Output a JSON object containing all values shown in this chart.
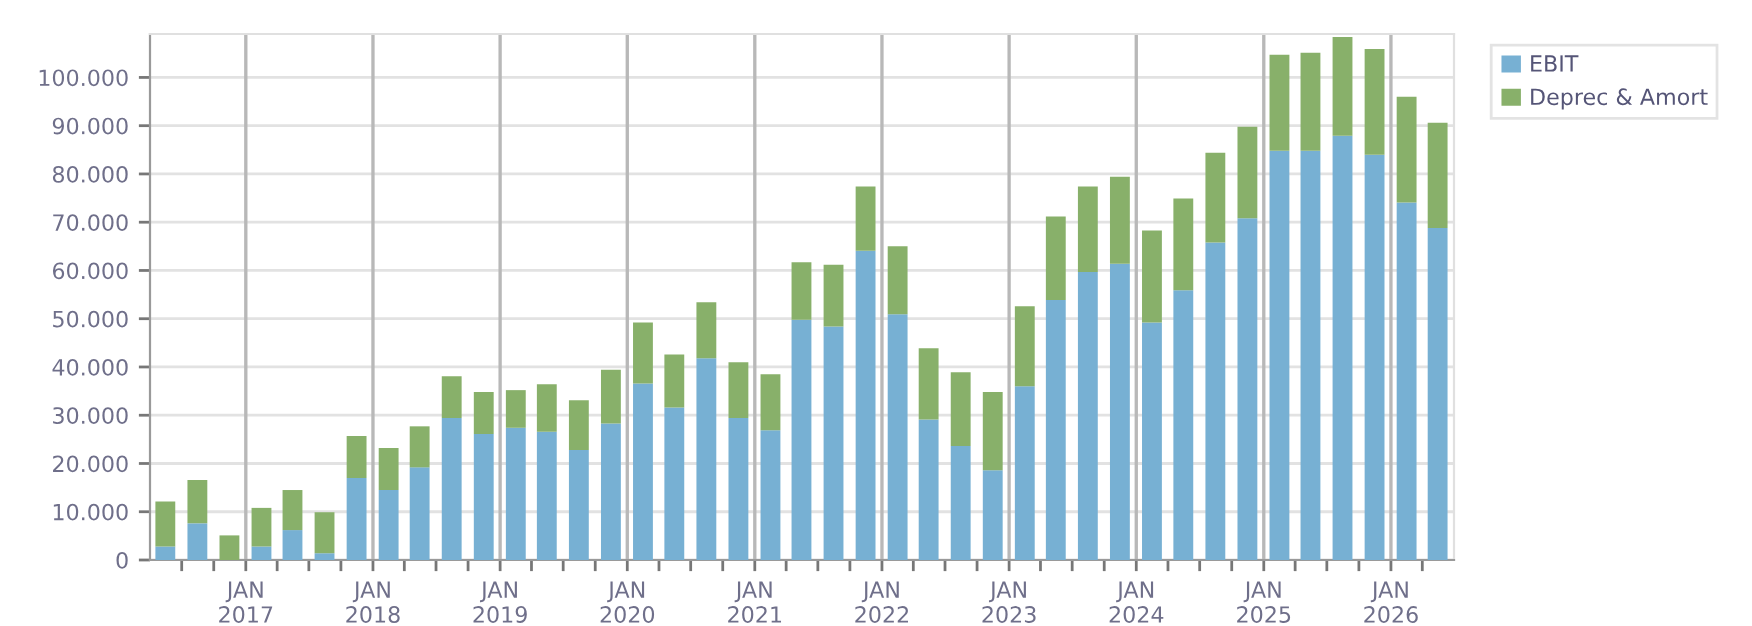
{
  "chart_data": {
    "type": "bar",
    "stacked": true,
    "x": [
      "2016-05-15",
      "2016-08-15",
      "2016-11-15",
      "2017-02-15",
      "2017-05-15",
      "2017-08-15",
      "2017-11-15",
      "2018-02-15",
      "2018-05-15",
      "2018-08-15",
      "2018-11-15",
      "2019-02-15",
      "2019-05-15",
      "2019-08-15",
      "2019-11-15",
      "2020-02-15",
      "2020-05-15",
      "2020-08-15",
      "2020-11-15",
      "2021-02-15",
      "2021-05-15",
      "2021-08-15",
      "2021-11-15",
      "2022-02-15",
      "2022-05-15",
      "2022-08-15",
      "2022-11-15",
      "2023-02-15",
      "2023-05-15",
      "2023-08-15",
      "2023-11-15",
      "2024-02-15",
      "2024-05-15",
      "2024-08-15",
      "2024-11-15",
      "2025-02-15",
      "2025-05-15",
      "2025-08-15",
      "2025-11-15",
      "2026-02-15",
      "2026-05-15"
    ],
    "series": [
      {
        "name": "EBIT",
        "color": "#77b0d3",
        "values": [
          2800,
          7600,
          0,
          2800,
          6200,
          1400,
          17000,
          14500,
          19200,
          29400,
          26100,
          27400,
          26600,
          22800,
          28300,
          36600,
          31600,
          41800,
          29400,
          26900,
          49800,
          48400,
          64100,
          50900,
          29100,
          23600,
          18600,
          36000,
          53900,
          59700,
          61400,
          49200,
          55900,
          65800,
          70800,
          84800,
          84800,
          87900,
          84000,
          74100,
          68800
        ]
      },
      {
        "name": "Deprec & Amort",
        "color": "#88b06a",
        "values": [
          9300,
          9000,
          5100,
          8000,
          8300,
          8500,
          8700,
          8700,
          8500,
          8700,
          8700,
          7800,
          9800,
          10300,
          11100,
          12600,
          11000,
          11600,
          11600,
          11600,
          11900,
          12800,
          13300,
          14100,
          14800,
          15300,
          16200,
          16600,
          17300,
          17700,
          18000,
          19100,
          19000,
          18600,
          19000,
          19900,
          20300,
          20500,
          21900,
          21900,
          21800
        ]
      }
    ],
    "xlim": [
      "2016-04",
      "2026-07"
    ],
    "xticks": [
      {
        "value": "2016-07",
        "label": null
      },
      {
        "value": "2016-10",
        "label": null
      },
      {
        "value": "2017-01",
        "label": "JAN\n2017"
      },
      {
        "value": "2017-04",
        "label": null
      },
      {
        "value": "2017-07",
        "label": null
      },
      {
        "value": "2017-10",
        "label": null
      },
      {
        "value": "2018-01",
        "label": "JAN\n2018"
      },
      {
        "value": "2018-04",
        "label": null
      },
      {
        "value": "2018-07",
        "label": null
      },
      {
        "value": "2018-10",
        "label": null
      },
      {
        "value": "2019-01",
        "label": "JAN\n2019"
      },
      {
        "value": "2019-04",
        "label": null
      },
      {
        "value": "2019-07",
        "label": null
      },
      {
        "value": "2019-10",
        "label": null
      },
      {
        "value": "2020-01",
        "label": "JAN\n2020"
      },
      {
        "value": "2020-04",
        "label": null
      },
      {
        "value": "2020-07",
        "label": null
      },
      {
        "value": "2020-10",
        "label": null
      },
      {
        "value": "2021-01",
        "label": "JAN\n2021"
      },
      {
        "value": "2021-04",
        "label": null
      },
      {
        "value": "2021-07",
        "label": null
      },
      {
        "value": "2021-10",
        "label": null
      },
      {
        "value": "2022-01",
        "label": "JAN\n2022"
      },
      {
        "value": "2022-04",
        "label": null
      },
      {
        "value": "2022-07",
        "label": null
      },
      {
        "value": "2022-10",
        "label": null
      },
      {
        "value": "2023-01",
        "label": "JAN\n2023"
      },
      {
        "value": "2023-04",
        "label": null
      },
      {
        "value": "2023-07",
        "label": null
      },
      {
        "value": "2023-10",
        "label": null
      },
      {
        "value": "2024-01",
        "label": "JAN\n2024"
      },
      {
        "value": "2024-04",
        "label": null
      },
      {
        "value": "2024-07",
        "label": null
      },
      {
        "value": "2024-10",
        "label": null
      },
      {
        "value": "2025-01",
        "label": "JAN\n2025"
      },
      {
        "value": "2025-04",
        "label": null
      },
      {
        "value": "2025-07",
        "label": null
      },
      {
        "value": "2025-10",
        "label": null
      },
      {
        "value": "2026-01",
        "label": "JAN\n2026"
      },
      {
        "value": "2026-04",
        "label": null
      }
    ],
    "ylim": [
      0,
      109000
    ],
    "yticks": [
      0,
      {
        "value": 10000,
        "label": "10.000"
      },
      {
        "value": 20000,
        "label": "20.000"
      },
      {
        "value": 30000,
        "label": "30.000"
      },
      {
        "value": 40000,
        "label": "40.000"
      },
      {
        "value": 50000,
        "label": "50.000"
      },
      {
        "value": 60000,
        "label": "60.000"
      },
      {
        "value": 70000,
        "label": "70.000"
      },
      {
        "value": 80000,
        "label": "80.000"
      },
      {
        "value": 90000,
        "label": "90.000"
      },
      {
        "value": 100000,
        "label": "100.000"
      }
    ],
    "grid": true,
    "legend": "top right"
  }
}
